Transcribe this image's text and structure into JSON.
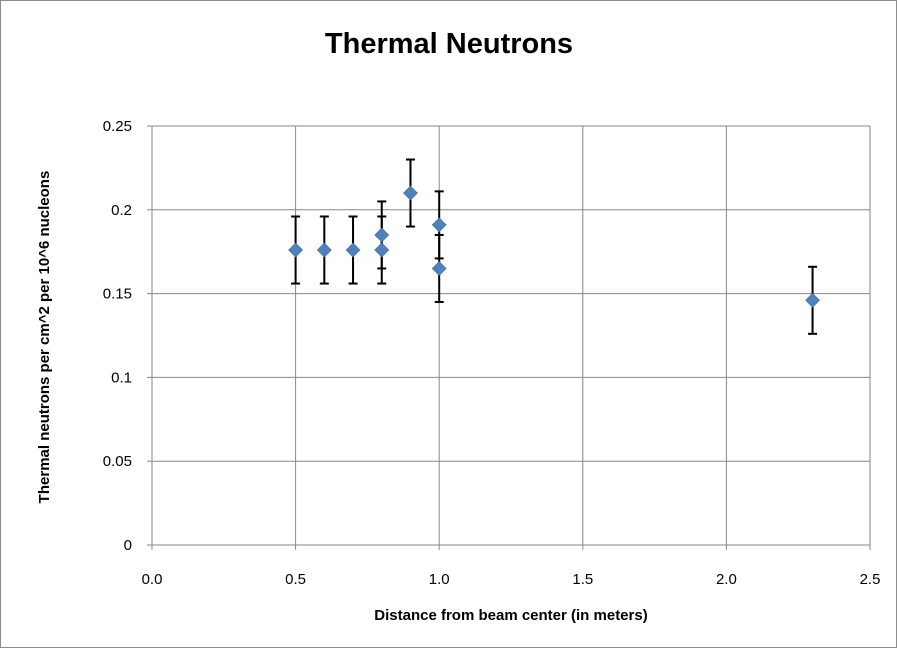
{
  "chart_data": {
    "type": "scatter",
    "title": "Thermal Neutrons",
    "xlabel": "Distance from beam center (in meters)",
    "ylabel": "Thermal neutrons per cm^2  per 10^6 nucleons",
    "xlim": [
      0,
      2.5
    ],
    "ylim": [
      0,
      0.25
    ],
    "x_ticks": [
      "0.0",
      "0.5",
      "1.0",
      "1.5",
      "2.0",
      "2.5"
    ],
    "y_ticks": [
      "0",
      "0.05",
      "0.1",
      "0.15",
      "0.2",
      "0.25"
    ],
    "grid": true,
    "legend": "none",
    "marker_color": "#4f81bd",
    "error_bar_color": "#000000",
    "series": [
      {
        "points": [
          {
            "x": 0.5,
            "y": 0.176,
            "err": 0.02
          },
          {
            "x": 0.6,
            "y": 0.176,
            "err": 0.02
          },
          {
            "x": 0.7,
            "y": 0.176,
            "err": 0.02
          },
          {
            "x": 0.8,
            "y": 0.176,
            "err": 0.02
          },
          {
            "x": 0.8,
            "y": 0.185,
            "err": 0.02
          },
          {
            "x": 0.9,
            "y": 0.21,
            "err": 0.02
          },
          {
            "x": 1.0,
            "y": 0.191,
            "err": 0.02
          },
          {
            "x": 1.0,
            "y": 0.165,
            "err": 0.02
          },
          {
            "x": 2.3,
            "y": 0.146,
            "err": 0.02
          }
        ]
      }
    ]
  }
}
